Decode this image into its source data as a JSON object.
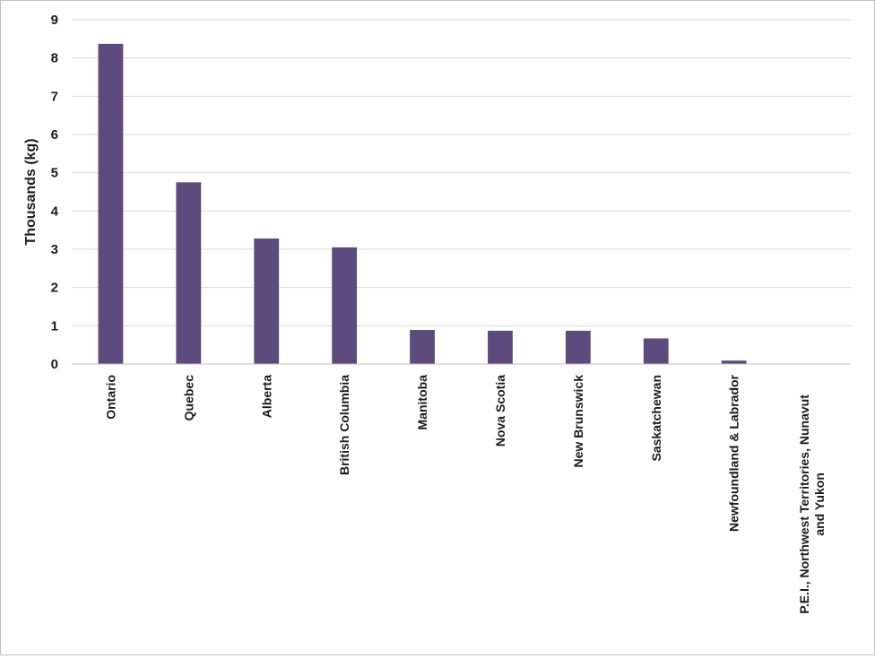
{
  "chart_data": {
    "type": "bar",
    "categories": [
      "Ontario",
      "Quebec",
      "Alberta",
      "British Columbia",
      "Manitoba",
      "Nova Scotia",
      "New Brunswick",
      "Saskatchewan",
      "Newfoundland & Labrador",
      "P.E.I., Northwest Territories, Nunavut and Yukon"
    ],
    "values": [
      8.37,
      4.75,
      3.28,
      3.05,
      0.89,
      0.87,
      0.87,
      0.67,
      0.09,
      0.0
    ],
    "ylabel": "Thousands (kg)",
    "xlabel": "",
    "ylim": [
      0,
      9
    ],
    "yticks": [
      0,
      1,
      2,
      3,
      4,
      5,
      6,
      7,
      8,
      9
    ],
    "grid": true,
    "legend": "none",
    "bar_color": "#5e4b7e"
  }
}
